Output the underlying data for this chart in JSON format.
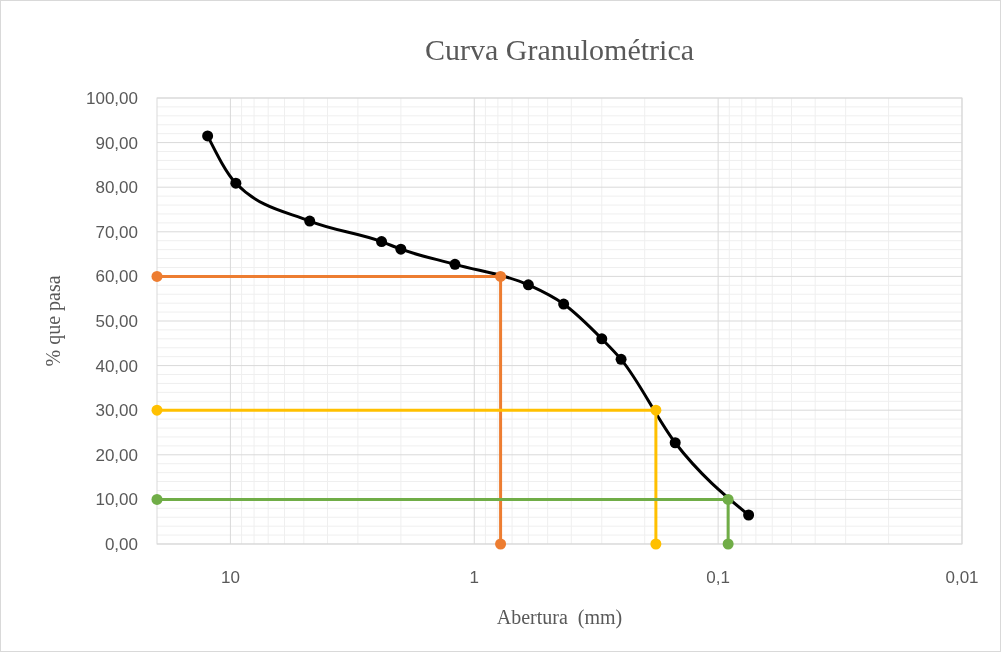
{
  "chart_data": {
    "type": "line",
    "title": "Curva Granulométrica",
    "xlabel": "Abertura  (mm)",
    "ylabel": "% que pasa",
    "log": "x",
    "xlim": [
      20,
      0.01
    ],
    "xticks": [
      {
        "value": 10,
        "label": "10"
      },
      {
        "value": 1,
        "label": "1"
      },
      {
        "value": 0.1,
        "label": "0,1"
      },
      {
        "value": 0.01,
        "label": "0,01"
      }
    ],
    "ylim": [
      0,
      100
    ],
    "yticks": [
      {
        "value": 0,
        "label": "0,00"
      },
      {
        "value": 10,
        "label": "10,00"
      },
      {
        "value": 20,
        "label": "20,00"
      },
      {
        "value": 30,
        "label": "30,00"
      },
      {
        "value": 40,
        "label": "40,00"
      },
      {
        "value": 50,
        "label": "50,00"
      },
      {
        "value": 60,
        "label": "60,00"
      },
      {
        "value": 70,
        "label": "70,00"
      },
      {
        "value": 80,
        "label": "80,00"
      },
      {
        "value": 90,
        "label": "90,00"
      },
      {
        "value": 100,
        "label": "100,00"
      }
    ],
    "grid": true,
    "marker": "circle",
    "line_style": "solid",
    "series": [
      {
        "color": "#000000",
        "x": [
          12.4,
          9.5,
          4.73,
          2.4,
          2.0,
          1.2,
          0.6,
          0.43,
          0.3,
          0.25,
          0.15,
          0.075
        ],
        "values": [
          91.5,
          80.9,
          72.4,
          67.8,
          66.1,
          62.7,
          58.1,
          53.8,
          46.0,
          41.4,
          22.7,
          6.5
        ]
      },
      {
        "color": "#ed7d31",
        "x": [
          20,
          0.78,
          0.78
        ],
        "values": [
          60,
          60,
          0
        ]
      },
      {
        "color": "#ffc000",
        "x": [
          20,
          0.18,
          0.18
        ],
        "values": [
          30,
          30,
          0
        ]
      },
      {
        "color": "#70ad47",
        "x": [
          20,
          0.091,
          0.091
        ],
        "values": [
          10,
          10,
          0
        ]
      }
    ]
  }
}
